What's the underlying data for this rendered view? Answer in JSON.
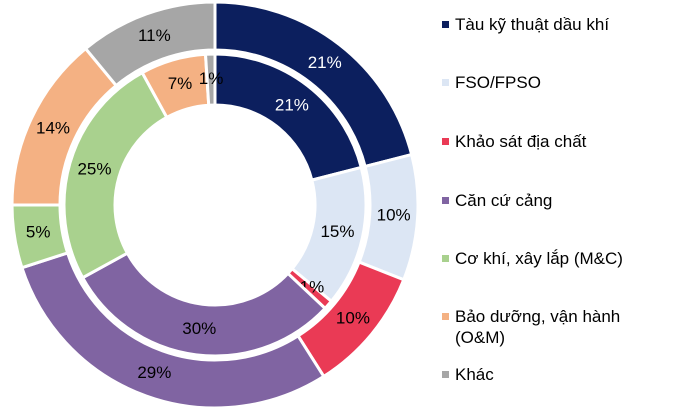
{
  "chart_data": {
    "type": "donut",
    "categories": [
      "Tàu kỹ thuật dầu khí",
      "FSO/FPSO",
      "Khảo sát địa chất",
      "Căn cứ cảng",
      "Cơ khí, xây lắp (M&C)",
      "Bảo dưỡng, vận hành (O&M)",
      "Khác"
    ],
    "colors": [
      "#0c1f5e",
      "#dce6f4",
      "#ea3a55",
      "#8064a2",
      "#a9d18e",
      "#f4b183",
      "#a6a6a6"
    ],
    "series": [
      {
        "values": [
          21,
          10,
          10,
          29,
          5,
          14,
          11
        ],
        "value_labels": [
          "21%",
          "10%",
          "10%",
          "29%",
          "5%",
          "14%",
          "11%"
        ]
      },
      {
        "values": [
          21,
          15,
          -1,
          30,
          25,
          7,
          1
        ],
        "value_labels": [
          "21%",
          "15%",
          "-1%",
          "30%",
          "25%",
          "7%",
          "1%"
        ]
      }
    ]
  }
}
